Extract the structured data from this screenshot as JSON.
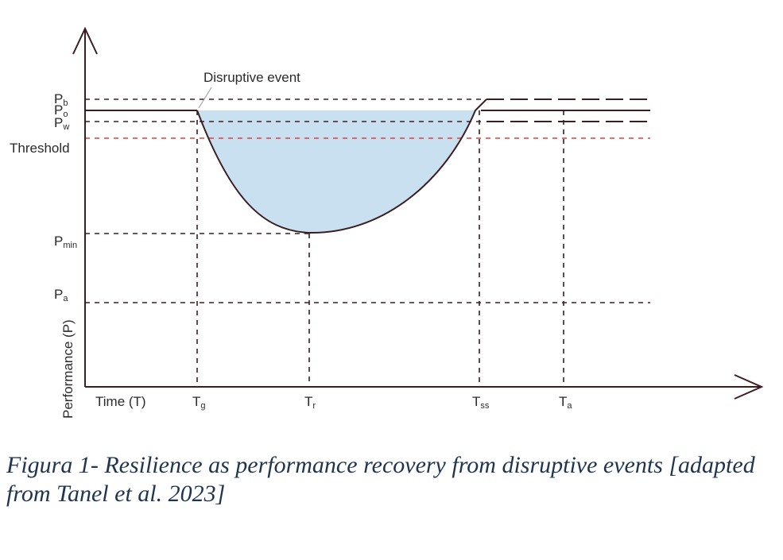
{
  "diagram": {
    "labels": {
      "pb": {
        "main": "P",
        "sub": "b"
      },
      "po": {
        "main": "P",
        "sub": "o"
      },
      "pw": {
        "main": "P",
        "sub": "w"
      },
      "threshold": "Threshold",
      "pmin": {
        "main": "P",
        "sub": "min"
      },
      "pa": {
        "main": "P",
        "sub": "a"
      },
      "y_axis": "Performance (P)",
      "x_axis": "Time (T)",
      "tg": {
        "main": "T",
        "sub": "g"
      },
      "tr": {
        "main": "T",
        "sub": "r"
      },
      "tss": {
        "main": "T",
        "sub": "ss"
      },
      "ta": {
        "main": "T",
        "sub": "a"
      },
      "event": "Disruptive event"
    },
    "colors": {
      "axis": "#3a1e22",
      "curve": "#3a1e22",
      "dashed": "#3a1e22",
      "threshold": "#e0413a",
      "fill": "#c9e0f1"
    }
  },
  "caption": "Figura 1- Resilience as performance recovery from disruptive events [adapted from Tanel et al. 2023]"
}
